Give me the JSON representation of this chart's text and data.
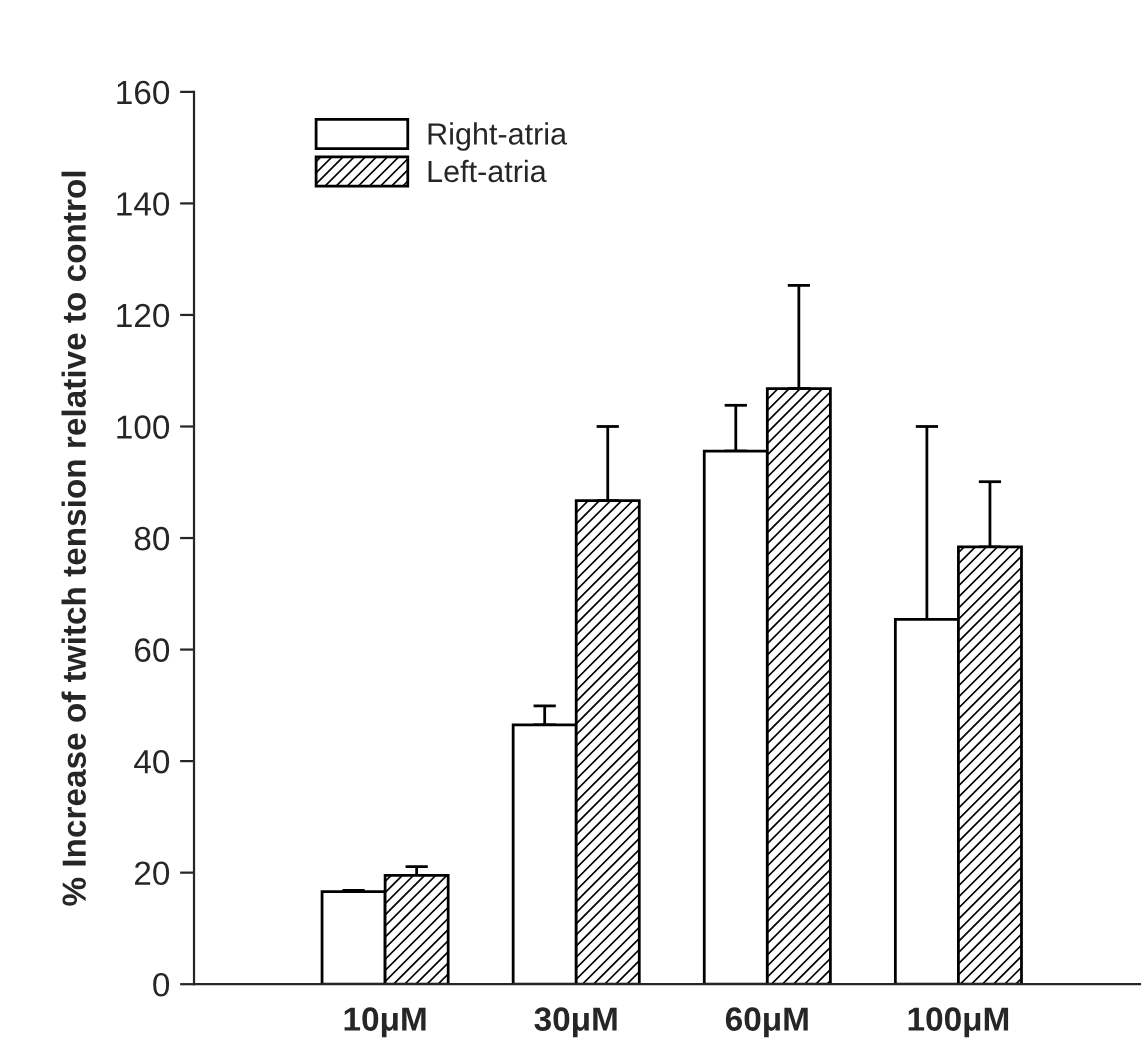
{
  "chart_data": {
    "type": "bar",
    "ylabel": "% Increase of twitch tension relative to control",
    "categories": [
      "10μM",
      "30μM",
      "60μM",
      "100μM"
    ],
    "series": [
      {
        "name": "Right-atria",
        "color": "#ffffff",
        "values": [
          16.6,
          46.5,
          95.6,
          65.4
        ],
        "errors": [
          [
            16.6,
            16.8
          ],
          [
            46.5,
            49.9
          ],
          [
            95.6,
            103.8
          ],
          [
            65.4,
            100
          ]
        ]
      },
      {
        "name": "Left-atria",
        "color": "#000000",
        "values": [
          19.5,
          86.7,
          106.8,
          78.4
        ],
        "errors": [
          [
            19.5,
            21.1
          ],
          [
            86.7,
            100
          ],
          [
            106.8,
            125.3
          ],
          [
            78.4,
            90.1
          ]
        ]
      }
    ],
    "ylim": [
      0,
      160
    ],
    "yticks": [
      0,
      20,
      40,
      60,
      80,
      100,
      120,
      140,
      160
    ],
    "grid": false,
    "legend": "top left"
  }
}
